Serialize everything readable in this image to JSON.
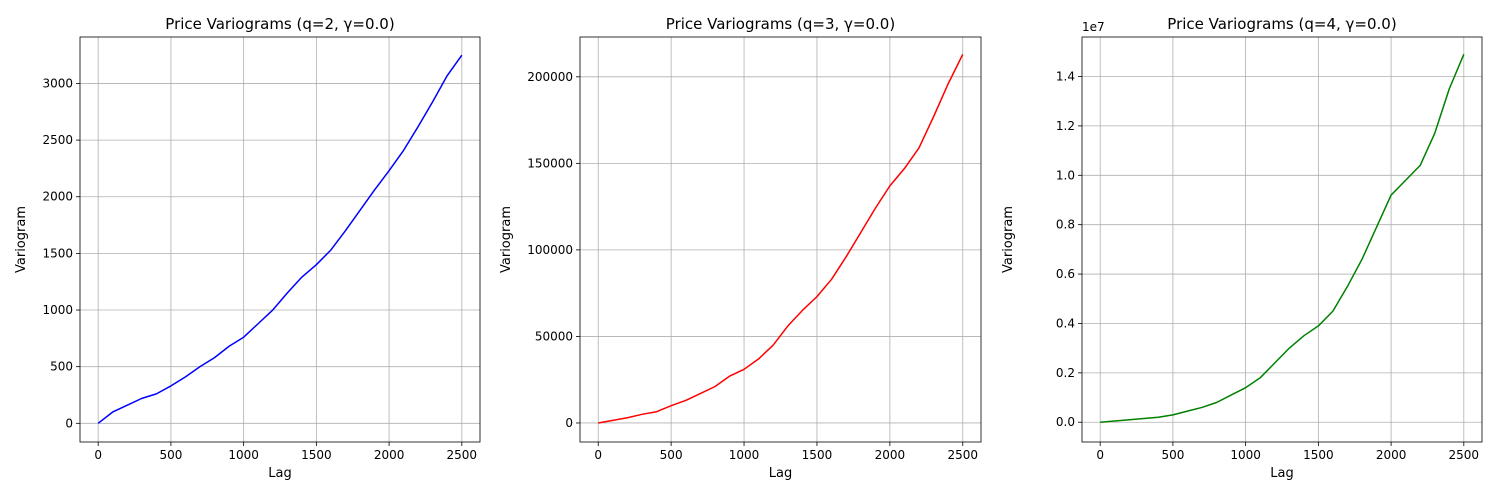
{
  "chart_data": [
    {
      "type": "line",
      "title": "Price Variograms (q=2, γ=0.0)",
      "xlabel": "Lag",
      "ylabel": "Variogram",
      "color": "#0000ff",
      "xlim": [
        -125,
        2625
      ],
      "ylim": [
        -165,
        3410
      ],
      "xticks": [
        0,
        500,
        1000,
        1500,
        2000,
        2500
      ],
      "xtick_labels": [
        "0",
        "500",
        "1000",
        "1500",
        "2000",
        "2500"
      ],
      "yticks": [
        0,
        500,
        1000,
        1500,
        2000,
        2500,
        3000
      ],
      "ytick_labels": [
        "0",
        "500",
        "1000",
        "1500",
        "2000",
        "2500",
        "3000"
      ],
      "offset_text": "",
      "grid": true,
      "x": [
        0,
        100,
        200,
        300,
        400,
        500,
        600,
        700,
        800,
        900,
        1000,
        1100,
        1200,
        1300,
        1400,
        1500,
        1600,
        1700,
        1800,
        1900,
        2000,
        2100,
        2200,
        2300,
        2400,
        2500
      ],
      "y": [
        0,
        100,
        160,
        220,
        260,
        330,
        410,
        500,
        580,
        680,
        760,
        880,
        1000,
        1150,
        1290,
        1400,
        1530,
        1700,
        1880,
        2060,
        2230,
        2410,
        2620,
        2840,
        3070,
        3250
      ]
    },
    {
      "type": "line",
      "title": "Price Variograms (q=3, γ=0.0)",
      "xlabel": "Lag",
      "ylabel": "Variogram",
      "color": "#ff0000",
      "xlim": [
        -125,
        2625
      ],
      "ylim": [
        -11000,
        223000
      ],
      "xticks": [
        0,
        500,
        1000,
        1500,
        2000,
        2500
      ],
      "xtick_labels": [
        "0",
        "500",
        "1000",
        "1500",
        "2000",
        "2500"
      ],
      "yticks": [
        0,
        50000,
        100000,
        150000,
        200000
      ],
      "ytick_labels": [
        "0",
        "50000",
        "100000",
        "150000",
        "200000"
      ],
      "offset_text": "",
      "grid": true,
      "x": [
        0,
        100,
        200,
        300,
        400,
        500,
        600,
        700,
        800,
        900,
        1000,
        1100,
        1200,
        1300,
        1400,
        1500,
        1600,
        1700,
        1800,
        1900,
        2000,
        2100,
        2200,
        2300,
        2400,
        2500
      ],
      "y": [
        0,
        1500,
        3000,
        5000,
        6500,
        10000,
        13000,
        17000,
        21000,
        27000,
        31000,
        37000,
        45000,
        56000,
        65000,
        73000,
        83000,
        96000,
        110000,
        124000,
        137000,
        147000,
        159000,
        177000,
        196000,
        213000
      ]
    },
    {
      "type": "line",
      "title": "Price Variograms (q=4, γ=0.0)",
      "xlabel": "Lag",
      "ylabel": "Variogram",
      "color": "#008000",
      "xlim": [
        -125,
        2625
      ],
      "ylim": [
        -0.08,
        1.56
      ],
      "xticks": [
        0,
        500,
        1000,
        1500,
        2000,
        2500
      ],
      "xtick_labels": [
        "0",
        "500",
        "1000",
        "1500",
        "2000",
        "2500"
      ],
      "yticks": [
        0.0,
        0.2,
        0.4,
        0.6,
        0.8,
        1.0,
        1.2,
        1.4
      ],
      "ytick_labels": [
        "0.0",
        "0.2",
        "0.4",
        "0.6",
        "0.8",
        "1.0",
        "1.2",
        "1.4"
      ],
      "offset_text": "1e7",
      "grid": true,
      "x": [
        0,
        100,
        200,
        300,
        400,
        500,
        600,
        700,
        800,
        900,
        1000,
        1100,
        1200,
        1300,
        1400,
        1500,
        1600,
        1700,
        1800,
        1900,
        2000,
        2100,
        2200,
        2300,
        2400,
        2500
      ],
      "y": [
        0,
        0.005,
        0.01,
        0.015,
        0.02,
        0.03,
        0.045,
        0.06,
        0.08,
        0.11,
        0.14,
        0.18,
        0.24,
        0.3,
        0.35,
        0.39,
        0.45,
        0.55,
        0.66,
        0.79,
        0.92,
        0.98,
        1.04,
        1.17,
        1.35,
        1.49
      ]
    }
  ]
}
